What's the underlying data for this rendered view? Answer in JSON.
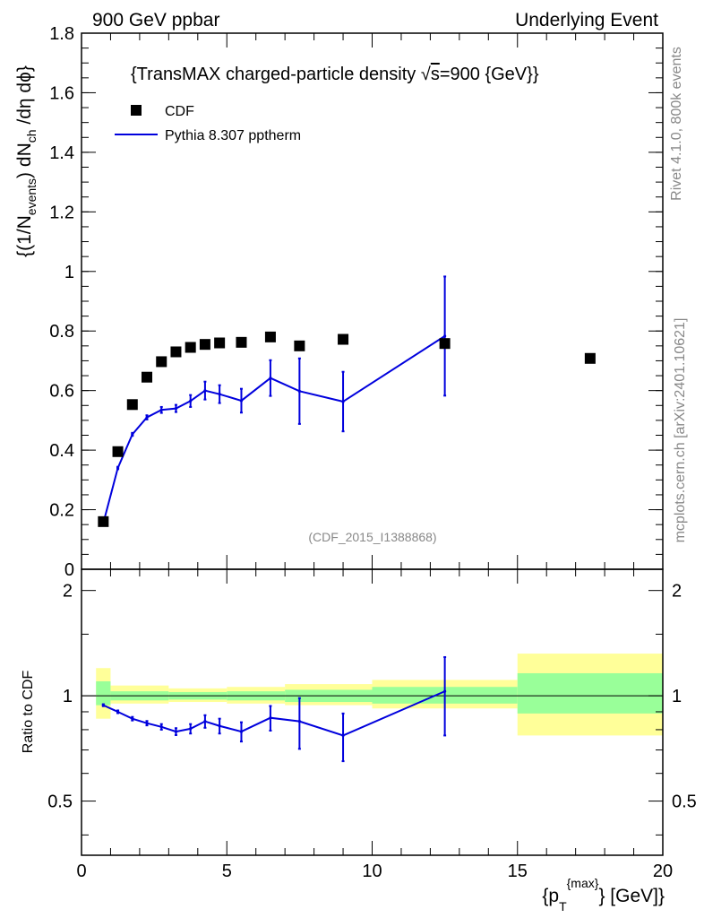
{
  "header": {
    "left": "900 GeV ppbar",
    "right": "Underlying Event"
  },
  "side_labels": {
    "rivet": "Rivet 4.1.0,  800k events",
    "mcplots": "mcplots.cern.ch [arXiv:2401.10621]"
  },
  "colors": {
    "mc": "#0000dd",
    "band_inner": "#99ff99",
    "band_outer": "#ffff99",
    "data": "#000000"
  },
  "chart_data": [
    {
      "type": "scatter",
      "title": "{TransMAX charged-particle density √s=900 {GeV}}",
      "title_parts": {
        "prefix": "{TransMAX charged-particle density ",
        "sqrt": "√",
        "s": "s",
        "suffix": "=900 {GeV}}"
      },
      "ylabel": "{(1/N_events) dN_ch /dη  dϕ}",
      "ylabel_parts": {
        "a": "{(1/N",
        "sub1": "events",
        "b": ") dN",
        "sub2": "ch",
        "c": " /dη  dϕ}"
      },
      "watermark": "(CDF_2015_I1388868)",
      "xlim": [
        0,
        20
      ],
      "ylim": [
        0,
        1.8
      ],
      "yticks": [
        0,
        0.2,
        0.4,
        0.6,
        0.8,
        1,
        1.2,
        1.4,
        1.6,
        1.8
      ],
      "ytick_labels": [
        "0",
        "0.2",
        "0.4",
        "0.6",
        "0.8",
        "1",
        "1.2",
        "1.4",
        "1.6",
        "1.8"
      ],
      "legend": [
        {
          "label": "CDF",
          "kind": "marker"
        },
        {
          "label": "Pythia 8.307 pptherm",
          "kind": "line"
        }
      ],
      "series": [
        {
          "name": "CDF",
          "x": [
            0.75,
            1.25,
            1.75,
            2.25,
            2.75,
            3.25,
            3.75,
            4.25,
            4.75,
            5.5,
            6.5,
            7.5,
            9.0,
            12.5,
            17.5
          ],
          "y": [
            0.16,
            0.395,
            0.553,
            0.645,
            0.697,
            0.73,
            0.745,
            0.755,
            0.76,
            0.762,
            0.78,
            0.75,
            0.772,
            0.758,
            0.708
          ]
        },
        {
          "name": "Pythia 8.307 pptherm",
          "x": [
            0.75,
            1.25,
            1.75,
            2.25,
            2.75,
            3.25,
            3.75,
            4.25,
            4.75,
            5.5,
            6.5,
            7.5,
            9.0,
            12.5
          ],
          "y": [
            0.155,
            0.34,
            0.453,
            0.51,
            0.535,
            0.54,
            0.565,
            0.6,
            0.588,
            0.566,
            0.642,
            0.598,
            0.563,
            0.783
          ],
          "err": [
            0.003,
            0.004,
            0.005,
            0.007,
            0.01,
            0.012,
            0.02,
            0.03,
            0.03,
            0.04,
            0.06,
            0.11,
            0.1,
            0.2
          ]
        }
      ]
    },
    {
      "type": "scatter",
      "ylabel": "Ratio to CDF",
      "xlabel": "{p_T^{max}} [GeV]",
      "xlabel_parts": {
        "a": "{p",
        "sub": "T",
        "sup": "{max}",
        "b": "} [GeV]}"
      },
      "xlim": [
        0,
        20
      ],
      "ylim": [
        0.35,
        2.3
      ],
      "yscale": "log",
      "yticks": [
        0.5,
        1,
        2
      ],
      "ytick_labels": [
        "0.5",
        "1",
        "2"
      ],
      "xticks": [
        0,
        5,
        10,
        15,
        20
      ],
      "xtick_labels": [
        "0",
        "5",
        "10",
        "15",
        "20"
      ],
      "bands": [
        {
          "x0": 0.5,
          "x1": 1.0,
          "in_lo": 0.94,
          "in_hi": 1.1,
          "out_lo": 0.86,
          "out_hi": 1.2
        },
        {
          "x0": 1.0,
          "x1": 3.0,
          "in_lo": 0.97,
          "in_hi": 1.03,
          "out_lo": 0.95,
          "out_hi": 1.07
        },
        {
          "x0": 3.0,
          "x1": 5.0,
          "in_lo": 0.975,
          "in_hi": 1.025,
          "out_lo": 0.96,
          "out_hi": 1.05
        },
        {
          "x0": 5.0,
          "x1": 7.0,
          "in_lo": 0.97,
          "in_hi": 1.03,
          "out_lo": 0.95,
          "out_hi": 1.06
        },
        {
          "x0": 7.0,
          "x1": 10.0,
          "in_lo": 0.96,
          "in_hi": 1.04,
          "out_lo": 0.94,
          "out_hi": 1.08
        },
        {
          "x0": 10.0,
          "x1": 15.0,
          "in_lo": 0.95,
          "in_hi": 1.06,
          "out_lo": 0.92,
          "out_hi": 1.11
        },
        {
          "x0": 15.0,
          "x1": 20.0,
          "in_lo": 0.89,
          "in_hi": 1.16,
          "out_lo": 0.77,
          "out_hi": 1.32
        }
      ],
      "series": [
        {
          "name": "Pythia 8.307 pptherm / CDF",
          "x": [
            0.75,
            1.25,
            1.75,
            2.25,
            2.75,
            3.25,
            3.75,
            4.25,
            4.75,
            5.5,
            6.5,
            7.5,
            9.0,
            12.5
          ],
          "y": [
            0.94,
            0.9,
            0.86,
            0.835,
            0.815,
            0.79,
            0.805,
            0.845,
            0.82,
            0.79,
            0.865,
            0.845,
            0.77,
            1.03
          ],
          "err": [
            0.006,
            0.008,
            0.01,
            0.012,
            0.015,
            0.018,
            0.025,
            0.035,
            0.04,
            0.05,
            0.07,
            0.14,
            0.12,
            0.26
          ]
        }
      ]
    }
  ]
}
